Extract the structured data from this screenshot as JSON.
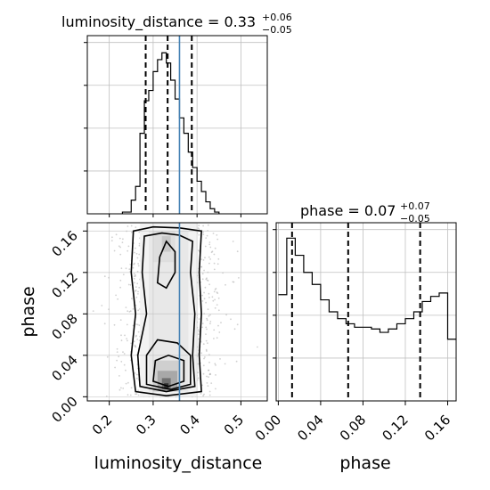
{
  "chart_data": {
    "type": "corner",
    "parameters": [
      "luminosity_distance",
      "phase"
    ],
    "truth": {
      "luminosity_distance": 0.36
    },
    "colors": {
      "truth": "#4682b4",
      "hist": "#000000",
      "grid": "#c0c0c0"
    },
    "grid": true,
    "panels": {
      "luminosity_distance_hist": {
        "title": {
          "text": "luminosity_distance = 0.33",
          "plus": "+0.06",
          "minus": "−0.05"
        },
        "xlim": [
          0.15,
          0.56
        ],
        "ylim": [
          0,
          1
        ],
        "quantiles": [
          0.283,
          0.333,
          0.388
        ],
        "bin_edges": [
          0.23,
          0.25,
          0.26,
          0.27,
          0.28,
          0.29,
          0.3,
          0.31,
          0.32,
          0.33,
          0.34,
          0.35,
          0.36,
          0.37,
          0.38,
          0.39,
          0.4,
          0.41,
          0.42,
          0.43,
          0.44,
          0.45
        ],
        "counts": [
          0.01,
          0.08,
          0.16,
          0.47,
          0.66,
          0.72,
          0.83,
          0.9,
          0.94,
          0.88,
          0.78,
          0.67,
          0.56,
          0.47,
          0.36,
          0.27,
          0.19,
          0.13,
          0.07,
          0.03,
          0.01
        ]
      },
      "phase_hist": {
        "title": {
          "text": "phase = 0.07",
          "plus": "+0.07",
          "minus": "−0.05"
        },
        "xlim": [
          -0.002,
          0.168
        ],
        "xticks": [
          "0.00",
          "0.04",
          "0.08",
          "0.12",
          "0.16"
        ],
        "xlabel": "phase",
        "ylim": [
          0,
          1
        ],
        "quantiles": [
          0.013,
          0.066,
          0.134
        ],
        "bin_edges": [
          0.0,
          0.008,
          0.016,
          0.024,
          0.032,
          0.04,
          0.048,
          0.056,
          0.064,
          0.072,
          0.08,
          0.088,
          0.096,
          0.104,
          0.112,
          0.12,
          0.128,
          0.136,
          0.144,
          0.152,
          0.16,
          0.168
        ],
        "counts": [
          0.62,
          0.95,
          0.85,
          0.75,
          0.68,
          0.59,
          0.52,
          0.48,
          0.45,
          0.43,
          0.43,
          0.42,
          0.4,
          0.42,
          0.45,
          0.48,
          0.52,
          0.58,
          0.61,
          0.63,
          0.36
        ]
      },
      "joint": {
        "xlim": [
          0.15,
          0.56
        ],
        "ylim": [
          -0.004,
          0.168
        ],
        "xticks": [
          "0.2",
          "0.3",
          "0.4",
          "0.5"
        ],
        "yticks": [
          "0.00",
          "0.04",
          "0.08",
          "0.12",
          "0.16"
        ],
        "xlabel": "luminosity_distance",
        "ylabel": "phase"
      }
    }
  }
}
